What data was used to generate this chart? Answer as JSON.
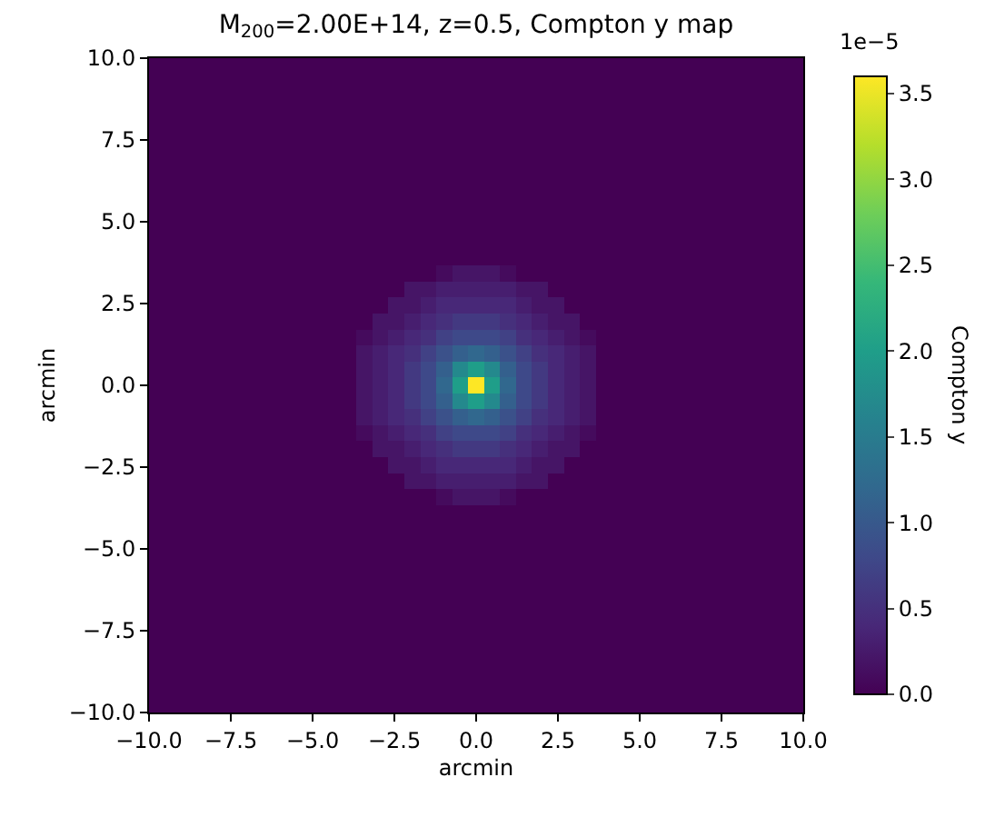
{
  "chart_data": {
    "type": "heatmap",
    "title": "M$_{200}$=2.00E+14, z=0.5, Compton y map",
    "xlabel": "arcmin",
    "ylabel": "arcmin",
    "clabel": "Compton y",
    "annotations": [
      "1e−5"
    ],
    "xlim": [
      -10,
      10
    ],
    "ylim": [
      -10,
      10
    ],
    "xticks": [
      {
        "value": -10,
        "label": "−10.0"
      },
      {
        "value": -7.5,
        "label": "−7.5"
      },
      {
        "value": -5,
        "label": "−5.0"
      },
      {
        "value": -2.5,
        "label": "−2.5"
      },
      {
        "value": 0,
        "label": "0.0"
      },
      {
        "value": 2.5,
        "label": "2.5"
      },
      {
        "value": 5,
        "label": "5.0"
      },
      {
        "value": 7.5,
        "label": "7.5"
      },
      {
        "value": 10,
        "label": "10.0"
      }
    ],
    "yticks": [
      {
        "value": -10,
        "label": "−10.0"
      },
      {
        "value": -7.5,
        "label": "−7.5"
      },
      {
        "value": -5,
        "label": "−5.0"
      },
      {
        "value": -2.5,
        "label": "−2.5"
      },
      {
        "value": 0,
        "label": "0.0"
      },
      {
        "value": 2.5,
        "label": "2.5"
      },
      {
        "value": 5,
        "label": "5.0"
      },
      {
        "value": 7.5,
        "label": "7.5"
      },
      {
        "value": 10,
        "label": "10.0"
      }
    ],
    "clim": [
      0,
      3.6
    ],
    "cticks": [
      {
        "value": 0,
        "label": "0.0"
      },
      {
        "value": 0.5,
        "label": "0.5"
      },
      {
        "value": 1,
        "label": "1.0"
      },
      {
        "value": 1.5,
        "label": "1.5"
      },
      {
        "value": 2,
        "label": "2.0"
      },
      {
        "value": 2.5,
        "label": "2.5"
      },
      {
        "value": 3,
        "label": "3.0"
      },
      {
        "value": 3.5,
        "label": "3.5"
      }
    ],
    "cells": [
      [
        0,
        0,
        0,
        0,
        0,
        0,
        0,
        0,
        0,
        0,
        0,
        0,
        0,
        0,
        0,
        0,
        0,
        0,
        0,
        0,
        0,
        0,
        0,
        0,
        0,
        0,
        0,
        0,
        0,
        0,
        0,
        0,
        0,
        0,
        0,
        0,
        0,
        0,
        0,
        0,
        0
      ],
      [
        0,
        0,
        0,
        0,
        0,
        0,
        0,
        0,
        0,
        0,
        0,
        0,
        0,
        0,
        0,
        0,
        0,
        0,
        0,
        0,
        0,
        0,
        0,
        0,
        0,
        0,
        0,
        0,
        0,
        0,
        0,
        0,
        0,
        0,
        0,
        0,
        0,
        0,
        0,
        0,
        0
      ],
      [
        0,
        0,
        0,
        0,
        0,
        0,
        0,
        0,
        0,
        0,
        0,
        0,
        0,
        0,
        0,
        0,
        0,
        0,
        0,
        0,
        0,
        0,
        0,
        0,
        0,
        0,
        0,
        0,
        0,
        0,
        0,
        0,
        0,
        0,
        0,
        0,
        0,
        0,
        0,
        0,
        0
      ],
      [
        0,
        0,
        0,
        0,
        0,
        0,
        0,
        0,
        0,
        0,
        0,
        0,
        0,
        0,
        0,
        0,
        0,
        0,
        0,
        0,
        0,
        0,
        0,
        0,
        0,
        0,
        0,
        0,
        0,
        0,
        0,
        0,
        0,
        0,
        0,
        0,
        0,
        0,
        0,
        0,
        0
      ],
      [
        0,
        0,
        0,
        0,
        0,
        0,
        0,
        0,
        0,
        0,
        0,
        0,
        0,
        0,
        0,
        0,
        0,
        0,
        0,
        0,
        0,
        0,
        0,
        0,
        0,
        0,
        0,
        0,
        0,
        0,
        0,
        0,
        0,
        0,
        0,
        0,
        0,
        0,
        0,
        0,
        0
      ],
      [
        0,
        0,
        0,
        0,
        0,
        0,
        0,
        0,
        0,
        0,
        0,
        0,
        0,
        0,
        0,
        0,
        0,
        0,
        0,
        0,
        0,
        0,
        0,
        0,
        0,
        0,
        0,
        0,
        0,
        0,
        0,
        0,
        0,
        0,
        0,
        0,
        0,
        0,
        0,
        0,
        0
      ],
      [
        0,
        0,
        0,
        0,
        0,
        0,
        0,
        0,
        0,
        0,
        0,
        0,
        0,
        0,
        0,
        0,
        0,
        0,
        0,
        0,
        0,
        0,
        0,
        0,
        0,
        0,
        0,
        0,
        0,
        0,
        0,
        0,
        0,
        0,
        0,
        0,
        0,
        0,
        0,
        0,
        0
      ],
      [
        0,
        0,
        0,
        0,
        0,
        0,
        0,
        0,
        0,
        0,
        0,
        0,
        0,
        0,
        0,
        0,
        0,
        0,
        0,
        0,
        0,
        0,
        0,
        0,
        0,
        0,
        0,
        0,
        0,
        0,
        0,
        0,
        0,
        0,
        0,
        0,
        0,
        0,
        0,
        0,
        0
      ],
      [
        0,
        0,
        0,
        0,
        0,
        0,
        0,
        0,
        0,
        0,
        0,
        0,
        0,
        0,
        0,
        0,
        0,
        0,
        0,
        0,
        0,
        0,
        0,
        0,
        0,
        0,
        0,
        0,
        0,
        0,
        0,
        0,
        0,
        0,
        0,
        0,
        0,
        0,
        0,
        0,
        0
      ],
      [
        0,
        0,
        0,
        0,
        0,
        0,
        0,
        0,
        0,
        0,
        0,
        0,
        0,
        0,
        0,
        0,
        0,
        0,
        0,
        0,
        0,
        0,
        0,
        0,
        0,
        0,
        0,
        0,
        0,
        0,
        0,
        0,
        0,
        0,
        0,
        0,
        0,
        0,
        0,
        0,
        0
      ],
      [
        0,
        0,
        0,
        0,
        0,
        0,
        0,
        0,
        0,
        0,
        0,
        0,
        0,
        0,
        0,
        0,
        0,
        0,
        0,
        0,
        0,
        0,
        0,
        0,
        0,
        0,
        0,
        0,
        0,
        0,
        0,
        0,
        0,
        0,
        0,
        0,
        0,
        0,
        0,
        0,
        0
      ],
      [
        0,
        0,
        0,
        0,
        0,
        0,
        0,
        0,
        0,
        0,
        0,
        0,
        0,
        0,
        0,
        0,
        0,
        0,
        0,
        0,
        0,
        0,
        0,
        0,
        0,
        0,
        0,
        0,
        0,
        0,
        0,
        0,
        0,
        0,
        0,
        0,
        0,
        0,
        0,
        0,
        0
      ],
      [
        0,
        0,
        0,
        0,
        0,
        0,
        0,
        0,
        0,
        0,
        0,
        0,
        0,
        0,
        0,
        0,
        0,
        0,
        0,
        0,
        0,
        0,
        0,
        0,
        0,
        0,
        0,
        0,
        0,
        0,
        0,
        0,
        0,
        0,
        0,
        0,
        0,
        0,
        0,
        0,
        0
      ],
      [
        0,
        0,
        0,
        0,
        0,
        0,
        0,
        0,
        0,
        0,
        0,
        0,
        0,
        0,
        0,
        0,
        0,
        0,
        0.1,
        0.2,
        0.2,
        0.2,
        0.1,
        0,
        0,
        0,
        0,
        0,
        0,
        0,
        0,
        0,
        0,
        0,
        0,
        0,
        0,
        0,
        0,
        0,
        0
      ],
      [
        0,
        0,
        0,
        0,
        0,
        0,
        0,
        0,
        0,
        0,
        0,
        0,
        0,
        0,
        0,
        0,
        0.2,
        0.2,
        0.3,
        0.3,
        0.3,
        0.3,
        0.3,
        0.2,
        0.2,
        0,
        0,
        0,
        0,
        0,
        0,
        0,
        0,
        0,
        0,
        0,
        0,
        0,
        0,
        0,
        0
      ],
      [
        0,
        0,
        0,
        0,
        0,
        0,
        0,
        0,
        0,
        0,
        0,
        0,
        0,
        0,
        0,
        0.2,
        0.2,
        0.3,
        0.4,
        0.4,
        0.4,
        0.4,
        0.4,
        0.3,
        0.2,
        0.2,
        0,
        0,
        0,
        0,
        0,
        0,
        0,
        0,
        0,
        0,
        0,
        0,
        0,
        0,
        0
      ],
      [
        0,
        0,
        0,
        0,
        0,
        0,
        0,
        0,
        0,
        0,
        0,
        0,
        0,
        0,
        0.2,
        0.2,
        0.3,
        0.4,
        0.5,
        0.6,
        0.6,
        0.6,
        0.5,
        0.4,
        0.3,
        0.2,
        0.2,
        0,
        0,
        0,
        0,
        0,
        0,
        0,
        0,
        0,
        0,
        0,
        0,
        0,
        0
      ],
      [
        0,
        0,
        0,
        0,
        0,
        0,
        0,
        0,
        0,
        0,
        0,
        0,
        0,
        0.1,
        0.2,
        0.3,
        0.4,
        0.5,
        0.7,
        0.8,
        0.8,
        0.8,
        0.7,
        0.5,
        0.4,
        0.3,
        0.2,
        0.1,
        0,
        0,
        0,
        0,
        0,
        0,
        0,
        0,
        0,
        0,
        0,
        0,
        0
      ],
      [
        0,
        0,
        0,
        0,
        0,
        0,
        0,
        0,
        0,
        0,
        0,
        0,
        0,
        0.2,
        0.3,
        0.4,
        0.5,
        0.7,
        0.9,
        1.1,
        1.2,
        1.1,
        0.9,
        0.7,
        0.5,
        0.4,
        0.3,
        0.2,
        0,
        0,
        0,
        0,
        0,
        0,
        0,
        0,
        0,
        0,
        0,
        0,
        0
      ],
      [
        0,
        0,
        0,
        0,
        0,
        0,
        0,
        0,
        0,
        0,
        0,
        0,
        0,
        0.2,
        0.3,
        0.4,
        0.6,
        0.8,
        1.1,
        1.7,
        2.0,
        1.7,
        1.1,
        0.8,
        0.6,
        0.4,
        0.3,
        0.2,
        0,
        0,
        0,
        0,
        0,
        0,
        0,
        0,
        0,
        0,
        0,
        0,
        0
      ],
      [
        0,
        0,
        0,
        0,
        0,
        0,
        0,
        0,
        0,
        0,
        0,
        0,
        0,
        0.2,
        0.3,
        0.4,
        0.6,
        0.8,
        1.2,
        2.0,
        3.6,
        2.0,
        1.2,
        0.8,
        0.6,
        0.4,
        0.3,
        0.2,
        0,
        0,
        0,
        0,
        0,
        0,
        0,
        0,
        0,
        0,
        0,
        0,
        0
      ],
      [
        0,
        0,
        0,
        0,
        0,
        0,
        0,
        0,
        0,
        0,
        0,
        0,
        0,
        0.2,
        0.3,
        0.4,
        0.6,
        0.8,
        1.1,
        1.7,
        2.0,
        1.7,
        1.1,
        0.8,
        0.6,
        0.4,
        0.3,
        0.2,
        0,
        0,
        0,
        0,
        0,
        0,
        0,
        0,
        0,
        0,
        0,
        0,
        0
      ],
      [
        0,
        0,
        0,
        0,
        0,
        0,
        0,
        0,
        0,
        0,
        0,
        0,
        0,
        0.2,
        0.3,
        0.4,
        0.5,
        0.7,
        0.9,
        1.1,
        1.2,
        1.1,
        0.9,
        0.7,
        0.5,
        0.4,
        0.3,
        0.2,
        0,
        0,
        0,
        0,
        0,
        0,
        0,
        0,
        0,
        0,
        0,
        0,
        0
      ],
      [
        0,
        0,
        0,
        0,
        0,
        0,
        0,
        0,
        0,
        0,
        0,
        0,
        0,
        0.1,
        0.2,
        0.3,
        0.4,
        0.5,
        0.7,
        0.8,
        0.8,
        0.8,
        0.7,
        0.5,
        0.4,
        0.3,
        0.2,
        0.1,
        0,
        0,
        0,
        0,
        0,
        0,
        0,
        0,
        0,
        0,
        0,
        0,
        0
      ],
      [
        0,
        0,
        0,
        0,
        0,
        0,
        0,
        0,
        0,
        0,
        0,
        0,
        0,
        0,
        0.2,
        0.2,
        0.3,
        0.4,
        0.5,
        0.6,
        0.6,
        0.6,
        0.5,
        0.4,
        0.3,
        0.2,
        0.2,
        0,
        0,
        0,
        0,
        0,
        0,
        0,
        0,
        0,
        0,
        0,
        0,
        0,
        0
      ],
      [
        0,
        0,
        0,
        0,
        0,
        0,
        0,
        0,
        0,
        0,
        0,
        0,
        0,
        0,
        0,
        0.2,
        0.2,
        0.3,
        0.4,
        0.4,
        0.4,
        0.4,
        0.4,
        0.3,
        0.2,
        0.2,
        0,
        0,
        0,
        0,
        0,
        0,
        0,
        0,
        0,
        0,
        0,
        0,
        0,
        0,
        0
      ],
      [
        0,
        0,
        0,
        0,
        0,
        0,
        0,
        0,
        0,
        0,
        0,
        0,
        0,
        0,
        0,
        0,
        0.2,
        0.2,
        0.3,
        0.3,
        0.3,
        0.3,
        0.3,
        0.2,
        0.2,
        0,
        0,
        0,
        0,
        0,
        0,
        0,
        0,
        0,
        0,
        0,
        0,
        0,
        0,
        0,
        0
      ],
      [
        0,
        0,
        0,
        0,
        0,
        0,
        0,
        0,
        0,
        0,
        0,
        0,
        0,
        0,
        0,
        0,
        0,
        0,
        0.1,
        0.2,
        0.2,
        0.2,
        0.1,
        0,
        0,
        0,
        0,
        0,
        0,
        0,
        0,
        0,
        0,
        0,
        0,
        0,
        0,
        0,
        0,
        0,
        0
      ],
      [
        0,
        0,
        0,
        0,
        0,
        0,
        0,
        0,
        0,
        0,
        0,
        0,
        0,
        0,
        0,
        0,
        0,
        0,
        0,
        0,
        0,
        0,
        0,
        0,
        0,
        0,
        0,
        0,
        0,
        0,
        0,
        0,
        0,
        0,
        0,
        0,
        0,
        0,
        0,
        0,
        0
      ],
      [
        0,
        0,
        0,
        0,
        0,
        0,
        0,
        0,
        0,
        0,
        0,
        0,
        0,
        0,
        0,
        0,
        0,
        0,
        0,
        0,
        0,
        0,
        0,
        0,
        0,
        0,
        0,
        0,
        0,
        0,
        0,
        0,
        0,
        0,
        0,
        0,
        0,
        0,
        0,
        0,
        0
      ],
      [
        0,
        0,
        0,
        0,
        0,
        0,
        0,
        0,
        0,
        0,
        0,
        0,
        0,
        0,
        0,
        0,
        0,
        0,
        0,
        0,
        0,
        0,
        0,
        0,
        0,
        0,
        0,
        0,
        0,
        0,
        0,
        0,
        0,
        0,
        0,
        0,
        0,
        0,
        0,
        0,
        0
      ],
      [
        0,
        0,
        0,
        0,
        0,
        0,
        0,
        0,
        0,
        0,
        0,
        0,
        0,
        0,
        0,
        0,
        0,
        0,
        0,
        0,
        0,
        0,
        0,
        0,
        0,
        0,
        0,
        0,
        0,
        0,
        0,
        0,
        0,
        0,
        0,
        0,
        0,
        0,
        0,
        0,
        0
      ],
      [
        0,
        0,
        0,
        0,
        0,
        0,
        0,
        0,
        0,
        0,
        0,
        0,
        0,
        0,
        0,
        0,
        0,
        0,
        0,
        0,
        0,
        0,
        0,
        0,
        0,
        0,
        0,
        0,
        0,
        0,
        0,
        0,
        0,
        0,
        0,
        0,
        0,
        0,
        0,
        0,
        0
      ],
      [
        0,
        0,
        0,
        0,
        0,
        0,
        0,
        0,
        0,
        0,
        0,
        0,
        0,
        0,
        0,
        0,
        0,
        0,
        0,
        0,
        0,
        0,
        0,
        0,
        0,
        0,
        0,
        0,
        0,
        0,
        0,
        0,
        0,
        0,
        0,
        0,
        0,
        0,
        0,
        0,
        0
      ],
      [
        0,
        0,
        0,
        0,
        0,
        0,
        0,
        0,
        0,
        0,
        0,
        0,
        0,
        0,
        0,
        0,
        0,
        0,
        0,
        0,
        0,
        0,
        0,
        0,
        0,
        0,
        0,
        0,
        0,
        0,
        0,
        0,
        0,
        0,
        0,
        0,
        0,
        0,
        0,
        0,
        0
      ],
      [
        0,
        0,
        0,
        0,
        0,
        0,
        0,
        0,
        0,
        0,
        0,
        0,
        0,
        0,
        0,
        0,
        0,
        0,
        0,
        0,
        0,
        0,
        0,
        0,
        0,
        0,
        0,
        0,
        0,
        0,
        0,
        0,
        0,
        0,
        0,
        0,
        0,
        0,
        0,
        0,
        0
      ],
      [
        0,
        0,
        0,
        0,
        0,
        0,
        0,
        0,
        0,
        0,
        0,
        0,
        0,
        0,
        0,
        0,
        0,
        0,
        0,
        0,
        0,
        0,
        0,
        0,
        0,
        0,
        0,
        0,
        0,
        0,
        0,
        0,
        0,
        0,
        0,
        0,
        0,
        0,
        0,
        0,
        0
      ],
      [
        0,
        0,
        0,
        0,
        0,
        0,
        0,
        0,
        0,
        0,
        0,
        0,
        0,
        0,
        0,
        0,
        0,
        0,
        0,
        0,
        0,
        0,
        0,
        0,
        0,
        0,
        0,
        0,
        0,
        0,
        0,
        0,
        0,
        0,
        0,
        0,
        0,
        0,
        0,
        0,
        0
      ],
      [
        0,
        0,
        0,
        0,
        0,
        0,
        0,
        0,
        0,
        0,
        0,
        0,
        0,
        0,
        0,
        0,
        0,
        0,
        0,
        0,
        0,
        0,
        0,
        0,
        0,
        0,
        0,
        0,
        0,
        0,
        0,
        0,
        0,
        0,
        0,
        0,
        0,
        0,
        0,
        0,
        0
      ],
      [
        0,
        0,
        0,
        0,
        0,
        0,
        0,
        0,
        0,
        0,
        0,
        0,
        0,
        0,
        0,
        0,
        0,
        0,
        0,
        0,
        0,
        0,
        0,
        0,
        0,
        0,
        0,
        0,
        0,
        0,
        0,
        0,
        0,
        0,
        0,
        0,
        0,
        0,
        0,
        0,
        0
      ],
      [
        0,
        0,
        0,
        0,
        0,
        0,
        0,
        0,
        0,
        0,
        0,
        0,
        0,
        0,
        0,
        0,
        0,
        0,
        0,
        0,
        0,
        0,
        0,
        0,
        0,
        0,
        0,
        0,
        0,
        0,
        0,
        0,
        0,
        0,
        0,
        0,
        0,
        0,
        0,
        0,
        0
      ]
    ]
  }
}
